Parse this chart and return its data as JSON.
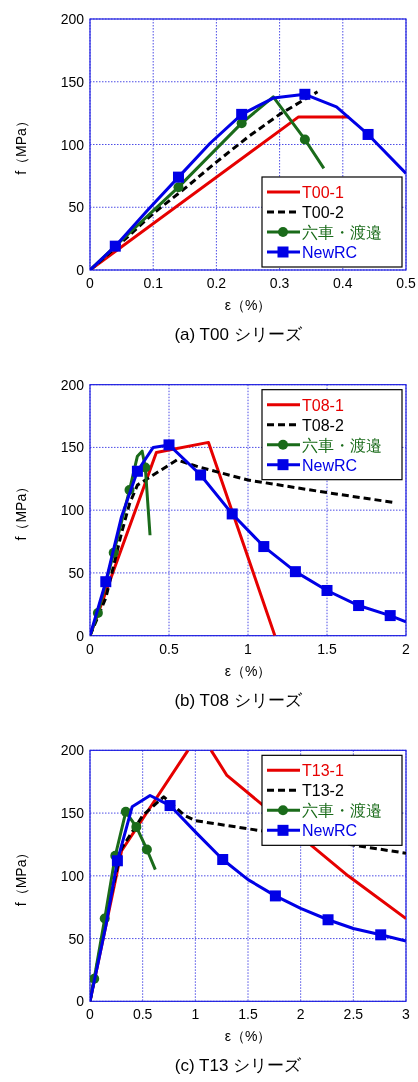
{
  "chart_data": [
    {
      "type": "line",
      "title": "(a) T00 シリーズ",
      "xlabel": "ε（%）",
      "ylabel": "f（MPa）",
      "xlim": [
        0,
        0.5
      ],
      "ylim": [
        0,
        200
      ],
      "xticks": [
        0,
        0.1,
        0.2,
        0.3,
        0.4,
        0.5
      ],
      "yticks": [
        0,
        50,
        100,
        150,
        200
      ],
      "grid": true,
      "legend": "bottom right",
      "series": [
        {
          "name": "T00-1",
          "type": "line",
          "color": "#e60000",
          "line_style": "solid",
          "x": [
            0,
            0.33,
            0.41
          ],
          "values": [
            0,
            122,
            122
          ]
        },
        {
          "name": "T00-2",
          "type": "line",
          "color": "#000000",
          "line_style": "dashed",
          "x": [
            0,
            0.05,
            0.1,
            0.15,
            0.2,
            0.25,
            0.3,
            0.36
          ],
          "values": [
            0,
            22,
            45,
            65,
            86,
            106,
            124,
            142
          ]
        },
        {
          "name": "六車・渡邉",
          "type": "line",
          "color": "#1a6b1a",
          "line_style": "solid",
          "x": [
            0,
            0.04,
            0.14,
            0.24,
            0.29,
            0.34,
            0.37
          ],
          "values": [
            0,
            19,
            66,
            117,
            138,
            104,
            81
          ]
        },
        {
          "type": "scatter",
          "color": "#1a6b1a",
          "marker": "circle",
          "x": [
            0.14,
            0.24,
            0.34
          ],
          "values": [
            66,
            117,
            104
          ]
        },
        {
          "name": "NewRC",
          "type": "line",
          "color": "#0000e6",
          "line_style": "solid",
          "x": [
            0,
            0.04,
            0.09,
            0.14,
            0.19,
            0.24,
            0.29,
            0.34,
            0.39,
            0.44,
            0.5
          ],
          "values": [
            0,
            19,
            47,
            74,
            101,
            124,
            137,
            140,
            130,
            108,
            77
          ]
        },
        {
          "type": "scatter",
          "color": "#0000e6",
          "marker": "square",
          "x": [
            0.04,
            0.14,
            0.24,
            0.34,
            0.44
          ],
          "values": [
            19,
            74,
            124,
            140,
            108
          ]
        }
      ]
    },
    {
      "type": "line",
      "title": "(b) T08 シリーズ",
      "xlabel": "ε（%）",
      "ylabel": "f（MPa）",
      "xlim": [
        0,
        2
      ],
      "ylim": [
        0,
        200
      ],
      "xticks": [
        0,
        0.5,
        1,
        1.5,
        2
      ],
      "yticks": [
        0,
        50,
        100,
        150,
        200
      ],
      "grid": true,
      "legend": "top right",
      "series": [
        {
          "name": "T08-1",
          "type": "line",
          "color": "#e60000",
          "line_style": "solid",
          "x": [
            0,
            0.42,
            0.75,
            1.17
          ],
          "values": [
            0,
            146,
            154,
            0
          ]
        },
        {
          "name": "T08-2",
          "type": "line",
          "color": "#000000",
          "line_style": "dashed",
          "x": [
            0,
            0.1,
            0.2,
            0.25,
            0.3,
            0.4,
            0.55,
            0.7,
            1,
            1.5,
            1.93
          ],
          "values": [
            0,
            30,
            82,
            105,
            120,
            128,
            140,
            134,
            124,
            114,
            106
          ]
        },
        {
          "name": "六車・渡邉",
          "type": "line",
          "color": "#1a6b1a",
          "line_style": "solid",
          "x": [
            0,
            0.05,
            0.15,
            0.25,
            0.3,
            0.33,
            0.35,
            0.38
          ],
          "values": [
            0,
            18,
            66,
            116,
            143,
            147,
            134,
            80
          ]
        },
        {
          "type": "scatter",
          "color": "#1a6b1a",
          "marker": "circle",
          "x": [
            0.05,
            0.15,
            0.25,
            0.35
          ],
          "values": [
            18,
            66,
            116,
            134
          ]
        },
        {
          "name": "NewRC",
          "type": "line",
          "color": "#0000e6",
          "line_style": "solid",
          "x": [
            0,
            0.1,
            0.2,
            0.3,
            0.4,
            0.5,
            0.7,
            0.9,
            1.1,
            1.3,
            1.5,
            1.7,
            1.9,
            2
          ],
          "values": [
            0,
            43,
            95,
            131,
            150,
            152,
            128,
            97,
            71,
            51,
            36,
            24,
            16,
            11
          ]
        },
        {
          "type": "scatter",
          "color": "#0000e6",
          "marker": "square",
          "x": [
            0.1,
            0.3,
            0.5,
            0.7,
            0.9,
            1.1,
            1.3,
            1.5,
            1.7,
            1.9
          ],
          "values": [
            43,
            131,
            152,
            128,
            97,
            71,
            51,
            36,
            24,
            16
          ]
        }
      ]
    },
    {
      "type": "line",
      "title": "(c) T13 シリーズ",
      "xlabel": "ε（%）",
      "ylabel": "f（MPa）",
      "xlim": [
        0,
        3
      ],
      "ylim": [
        0,
        200
      ],
      "xticks": [
        0,
        0.5,
        1,
        1.5,
        2,
        2.5,
        3
      ],
      "yticks": [
        0,
        50,
        100,
        150,
        200
      ],
      "grid": true,
      "legend": "top right",
      "series": [
        {
          "name": "T13-1",
          "type": "line",
          "color": "#e60000",
          "line_style": "solid",
          "x": [
            0,
            0.3,
            0.93,
            1.0,
            1.15,
            1.3,
            2.45,
            3
          ],
          "values": [
            0,
            120,
            200,
            null,
            200,
            180,
            100,
            66
          ]
        },
        {
          "name": "T13-2",
          "type": "line",
          "color": "#000000",
          "line_style": "dashed",
          "x": [
            0,
            0.15,
            0.3,
            0.5,
            0.7,
            0.9,
            1,
            3
          ],
          "values": [
            0,
            65,
            122,
            148,
            163,
            148,
            144,
            118
          ]
        },
        {
          "name": "六車・渡邉",
          "type": "line",
          "color": "#1a6b1a",
          "line_style": "solid",
          "x": [
            0,
            0.04,
            0.14,
            0.24,
            0.34,
            0.44,
            0.54,
            0.62
          ],
          "values": [
            0,
            18,
            66,
            116,
            151,
            139,
            121,
            105
          ]
        },
        {
          "type": "scatter",
          "color": "#1a6b1a",
          "marker": "circle",
          "x": [
            0.04,
            0.14,
            0.24,
            0.34,
            0.44,
            0.54
          ],
          "values": [
            18,
            66,
            116,
            151,
            139,
            121
          ]
        },
        {
          "name": "NewRC",
          "type": "line",
          "color": "#0000e6",
          "line_style": "solid",
          "x": [
            0,
            0.15,
            0.26,
            0.4,
            0.57,
            0.76,
            1,
            1.26,
            1.5,
            1.76,
            2,
            2.26,
            2.5,
            2.76,
            3
          ],
          "values": [
            0,
            60,
            112,
            155,
            164,
            156,
            135,
            113,
            97,
            84,
            74,
            65,
            58,
            53,
            48
          ]
        },
        {
          "type": "scatter",
          "color": "#0000e6",
          "marker": "square",
          "x": [
            0.26,
            0.76,
            1.26,
            1.76,
            2.26,
            2.76
          ],
          "values": [
            112,
            156,
            113,
            84,
            65,
            53
          ]
        }
      ]
    }
  ]
}
